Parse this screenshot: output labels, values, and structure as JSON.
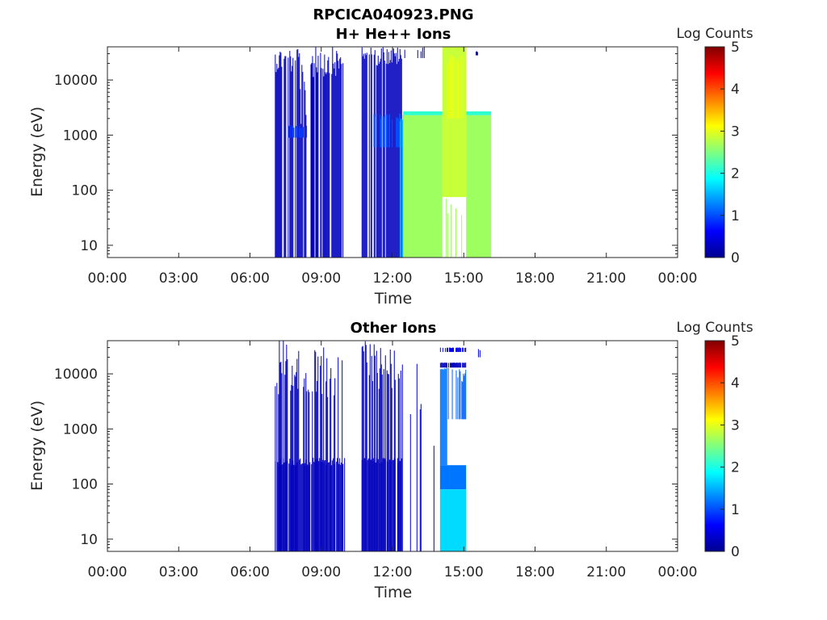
{
  "figure": {
    "title": "RPCICA040923.PNG"
  },
  "chart_data": [
    {
      "type": "heatmap",
      "title": "H+ He++ Ions",
      "xlabel": "Time",
      "ylabel": "Energy (eV)",
      "x_ticks": [
        "00:00",
        "03:00",
        "06:00",
        "09:00",
        "12:00",
        "15:00",
        "18:00",
        "21:00",
        "00:00"
      ],
      "y_ticks": [
        "10",
        "100",
        "1000",
        "10000"
      ],
      "y_scale": "log",
      "ylim": [
        6,
        40000
      ],
      "xlim_hours": [
        0,
        24
      ],
      "colorbar": {
        "label": "Log Counts",
        "ticks": [
          "0",
          "1",
          "2",
          "3",
          "4",
          "5"
        ],
        "range": [
          0,
          5
        ],
        "colormap": "jet"
      },
      "blocks": [
        {
          "t0": 7.05,
          "t1": 8.1,
          "e0": 6,
          "e1": 40000,
          "log_counts": 0.3,
          "density": 0.8
        },
        {
          "t0": 8.1,
          "t1": 8.55,
          "e0": 6,
          "e1": 20000,
          "log_counts": 0.3,
          "density": 0.45
        },
        {
          "t0": 8.55,
          "t1": 10.0,
          "e0": 6,
          "e1": 40000,
          "log_counts": 0.3,
          "density": 0.75
        },
        {
          "t0": 7.6,
          "t1": 8.4,
          "e0": 900,
          "e1": 1500,
          "log_counts": 0.9,
          "density": 0.6
        },
        {
          "t0": 10.7,
          "t1": 12.4,
          "e0": 6,
          "e1": 40000,
          "log_counts": 0.3,
          "density": 0.85
        },
        {
          "t0": 11.2,
          "t1": 12.4,
          "e0": 600,
          "e1": 2500,
          "log_counts": 1.0,
          "density": 0.7
        },
        {
          "t0": 12.3,
          "t1": 12.5,
          "e0": 6,
          "e1": 2500,
          "log_counts": 1.5,
          "density": 0.9
        },
        {
          "t0": 12.45,
          "t1": 14.1,
          "e0": 6,
          "e1": 2300,
          "log_counts": 2.65,
          "density": 1.0
        },
        {
          "t0": 12.45,
          "t1": 14.1,
          "e0": 2300,
          "e1": 2700,
          "log_counts": 2.1,
          "density": 1.0
        },
        {
          "t0": 14.1,
          "t1": 15.1,
          "e0": 75,
          "e1": 40000,
          "log_counts": 2.85,
          "density": 1.0
        },
        {
          "t0": 14.3,
          "t1": 15.0,
          "e0": 2000,
          "e1": 30000,
          "log_counts": 3.0,
          "density": 0.7
        },
        {
          "t0": 14.1,
          "t1": 15.1,
          "e0": 6,
          "e1": 75,
          "log_counts": 2.65,
          "density": 0.12
        },
        {
          "t0": 15.1,
          "t1": 16.15,
          "e0": 6,
          "e1": 2300,
          "log_counts": 2.65,
          "density": 1.0
        },
        {
          "t0": 15.1,
          "t1": 16.15,
          "e0": 2300,
          "e1": 2700,
          "log_counts": 2.1,
          "density": 1.0
        },
        {
          "t0": 12.5,
          "t1": 14.0,
          "e0": 25000,
          "e1": 40000,
          "log_counts": 0.4,
          "density": 0.2
        },
        {
          "t0": 15.5,
          "t1": 15.6,
          "e0": 28000,
          "e1": 34000,
          "log_counts": 0.4,
          "density": 0.5
        }
      ]
    },
    {
      "type": "heatmap",
      "title": "Other Ions",
      "xlabel": "Time",
      "ylabel": "Energy (eV)",
      "x_ticks": [
        "00:00",
        "03:00",
        "06:00",
        "09:00",
        "12:00",
        "15:00",
        "18:00",
        "21:00",
        "00:00"
      ],
      "y_ticks": [
        "10",
        "100",
        "1000",
        "10000"
      ],
      "y_scale": "log",
      "ylim": [
        6,
        40000
      ],
      "xlim_hours": [
        0,
        24
      ],
      "colorbar": {
        "label": "Log Counts",
        "ticks": [
          "0",
          "1",
          "2",
          "3",
          "4",
          "5"
        ],
        "range": [
          0,
          5
        ],
        "colormap": "jet"
      },
      "blocks": [
        {
          "t0": 7.05,
          "t1": 10.0,
          "e0": 6,
          "e1": 40000,
          "log_counts": 0.3,
          "density": 0.55
        },
        {
          "t0": 7.05,
          "t1": 10.0,
          "e0": 6,
          "e1": 300,
          "log_counts": 0.3,
          "density": 0.85
        },
        {
          "t0": 10.7,
          "t1": 12.4,
          "e0": 6,
          "e1": 40000,
          "log_counts": 0.3,
          "density": 0.6
        },
        {
          "t0": 10.7,
          "t1": 12.4,
          "e0": 6,
          "e1": 300,
          "log_counts": 0.3,
          "density": 0.9
        },
        {
          "t0": 12.4,
          "t1": 14.0,
          "e0": 6,
          "e1": 40000,
          "log_counts": 0.4,
          "density": 0.1
        },
        {
          "t0": 14.0,
          "t1": 15.1,
          "e0": 80,
          "e1": 220,
          "log_counts": 1.2,
          "density": 1.0
        },
        {
          "t0": 14.0,
          "t1": 15.1,
          "e0": 6,
          "e1": 80,
          "log_counts": 1.7,
          "density": 1.0
        },
        {
          "t0": 14.0,
          "t1": 14.3,
          "e0": 220,
          "e1": 13000,
          "log_counts": 1.2,
          "density": 0.95
        },
        {
          "t0": 14.3,
          "t1": 15.1,
          "e0": 1500,
          "e1": 13000,
          "log_counts": 1.1,
          "density": 0.5
        },
        {
          "t0": 14.0,
          "t1": 15.1,
          "e0": 13000,
          "e1": 16000,
          "log_counts": 0.3,
          "density": 0.9
        },
        {
          "t0": 14.0,
          "t1": 15.1,
          "e0": 25000,
          "e1": 30000,
          "log_counts": 0.5,
          "density": 0.8
        },
        {
          "t0": 15.6,
          "t1": 15.7,
          "e0": 20000,
          "e1": 30000,
          "log_counts": 0.4,
          "density": 0.5
        }
      ]
    }
  ]
}
